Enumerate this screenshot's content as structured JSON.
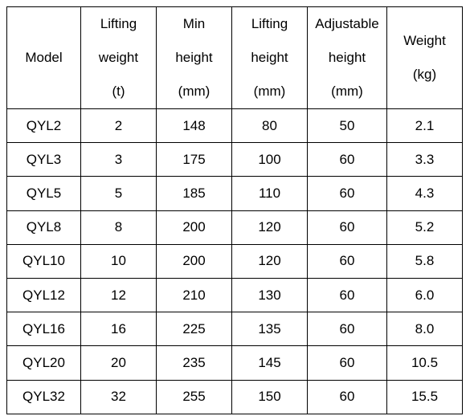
{
  "table": {
    "headers": [
      {
        "lines": [
          "Model"
        ]
      },
      {
        "lines": [
          "Lifting",
          "weight",
          "(t)"
        ]
      },
      {
        "lines": [
          "Min",
          "height",
          "(mm)"
        ]
      },
      {
        "lines": [
          "Lifting",
          "height",
          "(mm)"
        ]
      },
      {
        "lines": [
          "Adjustable",
          "height",
          "(mm)"
        ]
      },
      {
        "lines": [
          "Weight",
          "(kg)"
        ]
      }
    ],
    "rows": [
      [
        "QYL2",
        "2",
        "148",
        "80",
        "50",
        "2.1"
      ],
      [
        "QYL3",
        "3",
        "175",
        "100",
        "60",
        "3.3"
      ],
      [
        "QYL5",
        "5",
        "185",
        "110",
        "60",
        "4.3"
      ],
      [
        "QYL8",
        "8",
        "200",
        "120",
        "60",
        "5.2"
      ],
      [
        "QYL10",
        "10",
        "200",
        "120",
        "60",
        "5.8"
      ],
      [
        "QYL12",
        "12",
        "210",
        "130",
        "60",
        "6.0"
      ],
      [
        "QYL16",
        "16",
        "225",
        "135",
        "60",
        "8.0"
      ],
      [
        "QYL20",
        "20",
        "235",
        "145",
        "60",
        "10.5"
      ],
      [
        "QYL32",
        "32",
        "255",
        "150",
        "60",
        "15.5"
      ]
    ]
  }
}
